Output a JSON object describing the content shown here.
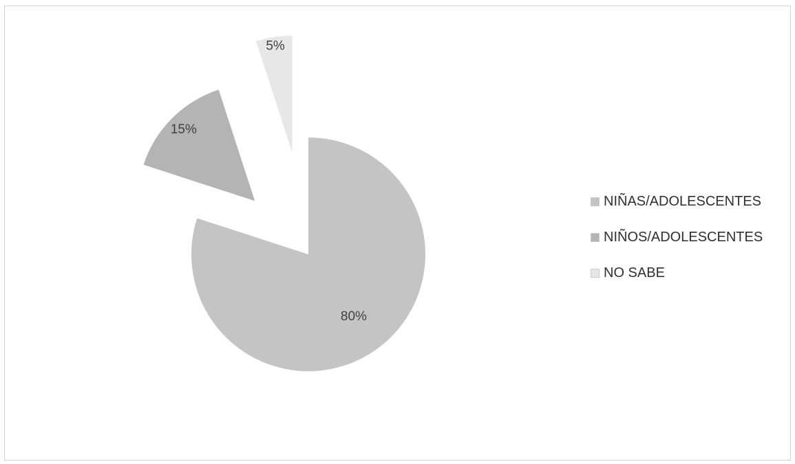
{
  "chart_data": {
    "type": "pie",
    "title": "",
    "categories": [
      "NIÑAS/ADOLESCENTES",
      "NIÑOS/ADOLESCENTES",
      "NO SABE"
    ],
    "values": [
      80,
      15,
      5
    ],
    "value_labels": [
      "80%",
      "15%",
      "5%"
    ],
    "exploded": [
      false,
      true,
      true
    ],
    "colors": [
      "#c4c4c4",
      "#b4b4b4",
      "#e7e7e7"
    ],
    "legend_position": "right"
  }
}
